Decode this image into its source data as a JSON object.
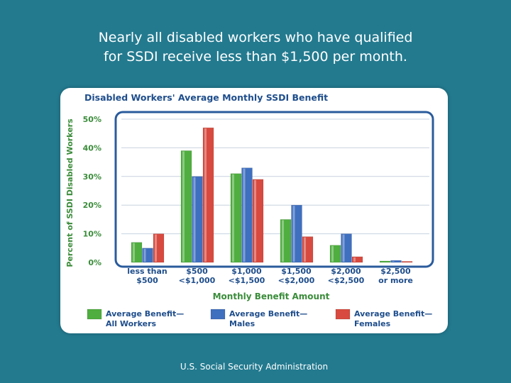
{
  "slide": {
    "headline_line1": "Nearly all disabled workers who have qualified",
    "headline_line2": "for SSDI receive less than $1,500 per month.",
    "source": "U.S. Social Security Administration"
  },
  "chart_data": {
    "type": "bar",
    "title": "Disabled Workers' Average Monthly SSDI Benefit",
    "xlabel": "Monthly Benefit Amount",
    "ylabel": "Percent of SSDI Disabled Workers",
    "ylim": [
      0,
      50
    ],
    "yticks": [
      0,
      10,
      20,
      30,
      40,
      50
    ],
    "ytick_labels": [
      "0%",
      "10%",
      "20%",
      "30%",
      "40%",
      "50%"
    ],
    "grid": true,
    "categories": [
      [
        "less than",
        "$500"
      ],
      [
        "$500",
        "<$1,000"
      ],
      [
        "$1,000",
        "<$1,500"
      ],
      [
        "$1,500",
        "<$2,000"
      ],
      [
        "$2,000",
        "<$2,500"
      ],
      [
        "$2,500",
        "or more"
      ]
    ],
    "series": [
      {
        "name": [
          "Average Benefit—",
          "All Workers"
        ],
        "color": "#4fae3f",
        "values": [
          7,
          39,
          31,
          15,
          6,
          0.5
        ]
      },
      {
        "name": [
          "Average Benefit—",
          "Males"
        ],
        "color": "#3f6fbf",
        "values": [
          5,
          30,
          33,
          20,
          10,
          0.7
        ]
      },
      {
        "name": [
          "Average Benefit—",
          "Females"
        ],
        "color": "#d84a3f",
        "values": [
          10,
          47,
          29,
          9,
          2,
          0.3
        ]
      }
    ],
    "legend_position": "bottom",
    "colors": {
      "title": "#1f4e8c",
      "axis_text": "#3b8c3b",
      "frame": "#2a5b9c",
      "grid": "#c8d2e0"
    }
  }
}
